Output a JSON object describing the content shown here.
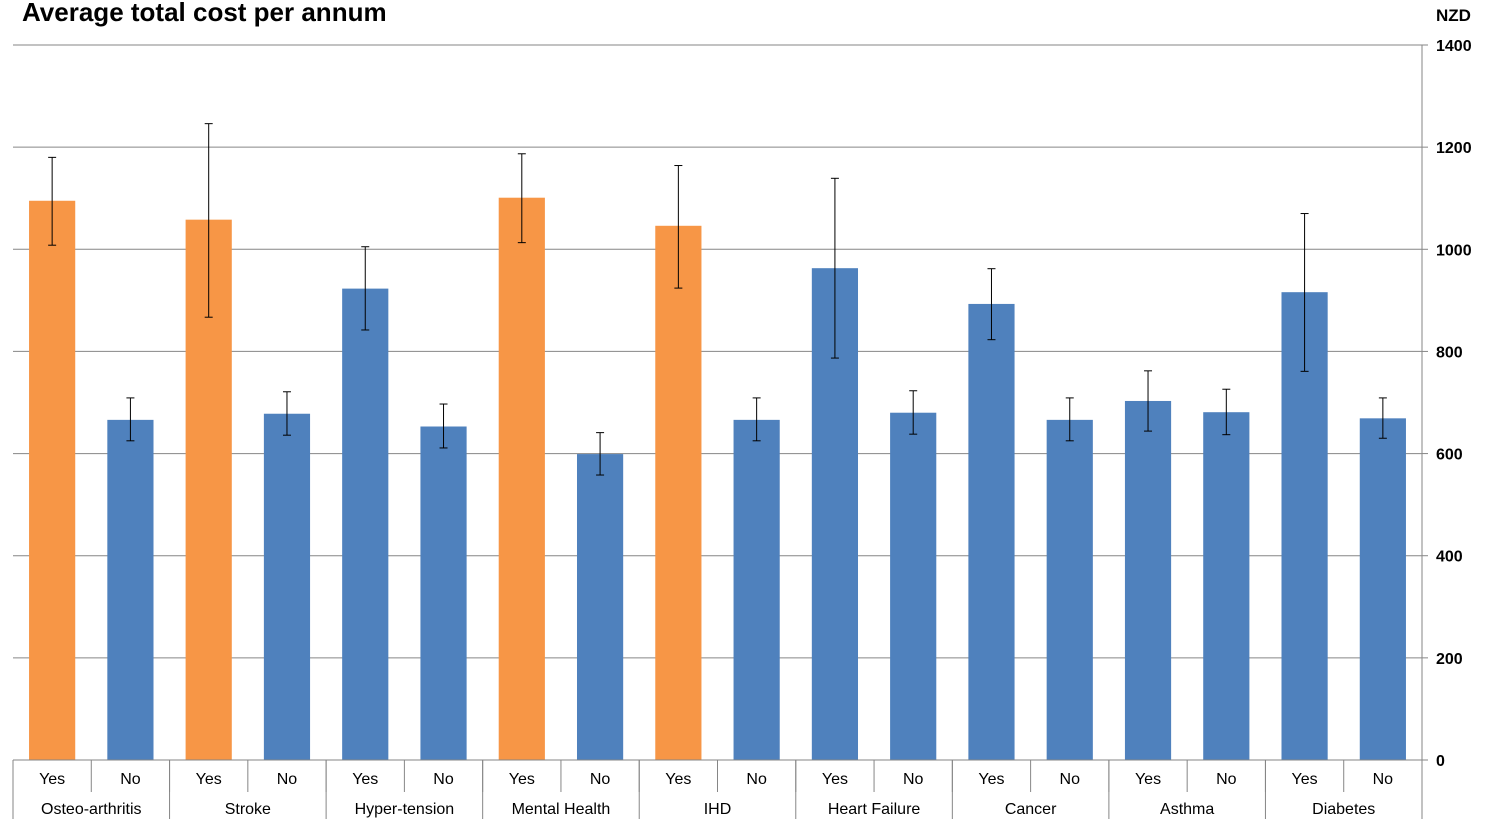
{
  "chart_data": {
    "type": "bar",
    "title": "Average total cost per annum",
    "unit_label": "NZD",
    "ylim": [
      0,
      1400
    ],
    "yticks": [
      0,
      200,
      400,
      600,
      800,
      1000,
      1200,
      1400
    ],
    "grid": true,
    "groups": [
      {
        "name": "Osteo-arthritis",
        "bars": [
          {
            "label": "Yes",
            "value": 1095,
            "err_low": 1008,
            "err_high": 1180,
            "highlight": true
          },
          {
            "label": "No",
            "value": 666,
            "err_low": 625,
            "err_high": 709,
            "highlight": false
          }
        ]
      },
      {
        "name": "Stroke",
        "bars": [
          {
            "label": "Yes",
            "value": 1058,
            "err_low": 867,
            "err_high": 1246,
            "highlight": true
          },
          {
            "label": "No",
            "value": 678,
            "err_low": 636,
            "err_high": 721,
            "highlight": false
          }
        ]
      },
      {
        "name": "Hyper-tension",
        "bars": [
          {
            "label": "Yes",
            "value": 923,
            "err_low": 842,
            "err_high": 1005,
            "highlight": false
          },
          {
            "label": "No",
            "value": 653,
            "err_low": 611,
            "err_high": 697,
            "highlight": false
          }
        ]
      },
      {
        "name": "Mental Health",
        "bars": [
          {
            "label": "Yes",
            "value": 1101,
            "err_low": 1013,
            "err_high": 1187,
            "highlight": true
          },
          {
            "label": "No",
            "value": 599,
            "err_low": 558,
            "err_high": 641,
            "highlight": false
          }
        ]
      },
      {
        "name": "IHD",
        "bars": [
          {
            "label": "Yes",
            "value": 1046,
            "err_low": 924,
            "err_high": 1164,
            "highlight": true
          },
          {
            "label": "No",
            "value": 666,
            "err_low": 625,
            "err_high": 709,
            "highlight": false
          }
        ]
      },
      {
        "name": "Heart Failure",
        "bars": [
          {
            "label": "Yes",
            "value": 963,
            "err_low": 787,
            "err_high": 1139,
            "highlight": false
          },
          {
            "label": "No",
            "value": 680,
            "err_low": 638,
            "err_high": 723,
            "highlight": false
          }
        ]
      },
      {
        "name": "Cancer",
        "bars": [
          {
            "label": "Yes",
            "value": 893,
            "err_low": 823,
            "err_high": 962,
            "highlight": false
          },
          {
            "label": "No",
            "value": 666,
            "err_low": 625,
            "err_high": 709,
            "highlight": false
          }
        ]
      },
      {
        "name": "Asthma",
        "bars": [
          {
            "label": "Yes",
            "value": 703,
            "err_low": 644,
            "err_high": 762,
            "highlight": false
          },
          {
            "label": "No",
            "value": 681,
            "err_low": 637,
            "err_high": 726,
            "highlight": false
          }
        ]
      },
      {
        "name": "Diabetes",
        "bars": [
          {
            "label": "Yes",
            "value": 916,
            "err_low": 761,
            "err_high": 1070,
            "highlight": false
          },
          {
            "label": "No",
            "value": 669,
            "err_low": 630,
            "err_high": 709,
            "highlight": false
          }
        ]
      }
    ],
    "colors": {
      "highlight": "#f79646",
      "default": "#4f81bd",
      "grid": "#868686",
      "error_bar": "#000000"
    }
  }
}
